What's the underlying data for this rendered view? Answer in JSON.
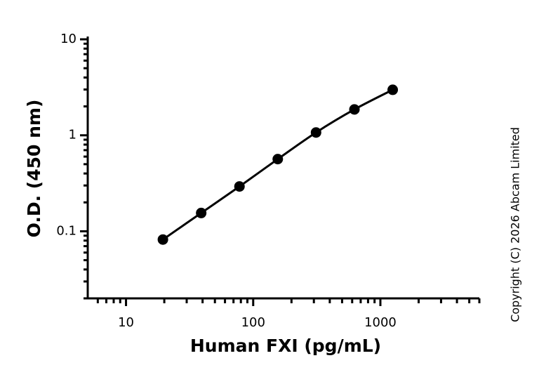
{
  "chart_data": {
    "type": "scatter",
    "x_label": "Human FXI (pg/mL)",
    "y_label": "O.D. (450 nm)",
    "annotation": "Copyright (C) 2026 Abcam Limited",
    "x": [
      19.5,
      39,
      78,
      156,
      312,
      625,
      1250
    ],
    "values": [
      0.082,
      0.155,
      0.293,
      0.565,
      1.07,
      1.86,
      2.98
    ],
    "color": "#000000",
    "x_log": true,
    "y_log": true,
    "xlim": [
      5,
      6000
    ],
    "ylim": [
      0.02,
      10
    ],
    "xticks": [
      10,
      100,
      1000
    ],
    "x_minor_ticks": [
      6,
      7,
      8,
      9,
      20,
      30,
      40,
      50,
      60,
      70,
      80,
      90,
      200,
      300,
      400,
      500,
      600,
      700,
      800,
      900,
      2000,
      3000,
      4000,
      5000,
      6000
    ],
    "yticks": [
      0.1,
      1,
      10
    ],
    "y_minor_ticks": [
      0.02,
      0.03,
      0.04,
      0.05,
      0.06,
      0.07,
      0.08,
      0.09,
      0.2,
      0.3,
      0.4,
      0.5,
      0.6,
      0.7,
      0.8,
      0.9,
      2,
      3,
      4,
      5,
      6,
      7,
      8,
      9
    ]
  }
}
